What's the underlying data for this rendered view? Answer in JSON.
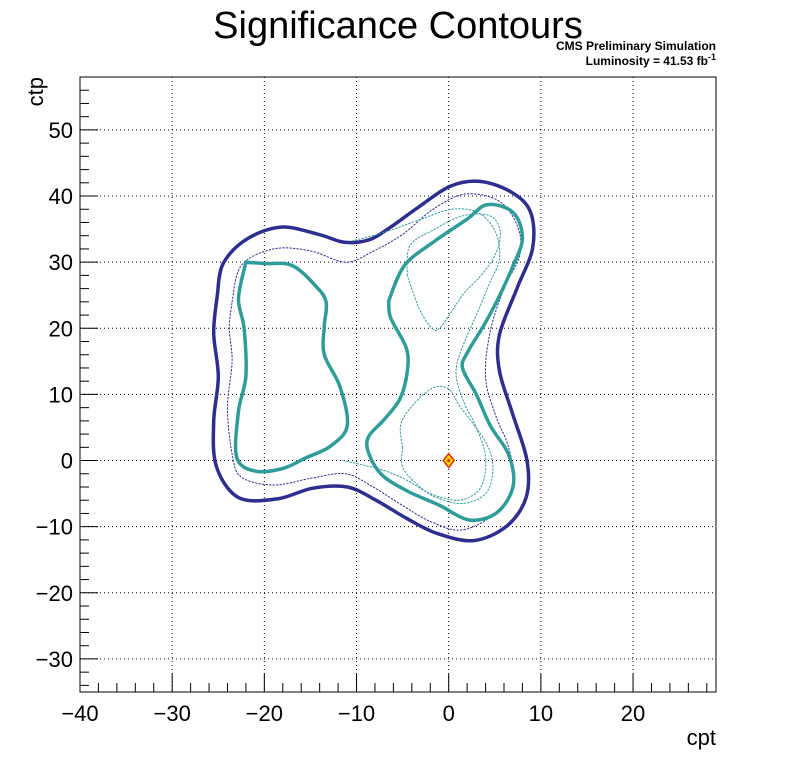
{
  "chart_data": {
    "type": "contour",
    "title": "Significance Contours",
    "annotation_line1": "CMS Preliminary Simulation",
    "annotation_line2_prefix": "Luminosity = 41.53 fb",
    "annotation_line2_sup": "-1",
    "xlabel": "cpt",
    "ylabel": "ctp",
    "xlim": [
      -40,
      29
    ],
    "ylim": [
      -35,
      58
    ],
    "x_ticks": [
      -40,
      -30,
      -20,
      -10,
      0,
      10,
      20
    ],
    "x_tick_labels": [
      "−40",
      "−30",
      "−20",
      "−10",
      "0",
      "10",
      "20"
    ],
    "y_ticks": [
      -30,
      -20,
      -10,
      0,
      10,
      20,
      30,
      40,
      50
    ],
    "y_tick_labels": [
      "−30",
      "−20",
      "−10",
      "0",
      "10",
      "20",
      "30",
      "40",
      "50"
    ],
    "grid": true,
    "colors": {
      "outer_contour": "#2e2e8e",
      "inner_contour": "#2e9c98",
      "best_fit_fill": "#ffd200",
      "best_fit_edge": "#e03000"
    },
    "best_fit_point": {
      "x": 0,
      "y": 0
    },
    "contours": [
      {
        "id": "outer-solid",
        "color": "#2e2e8e",
        "width": 3.5,
        "dash": "",
        "points": [
          [
            -25.1,
            25
          ],
          [
            -24.5,
            29.7
          ],
          [
            -22,
            33.4
          ],
          [
            -18.2,
            35.3
          ],
          [
            -14.1,
            34.2
          ],
          [
            -11.3,
            33
          ],
          [
            -8.6,
            33.4
          ],
          [
            -6.3,
            35.3
          ],
          [
            -3.3,
            38.3
          ],
          [
            0.2,
            41.5
          ],
          [
            3.5,
            42.2
          ],
          [
            6.9,
            40.5
          ],
          [
            8.9,
            37.5
          ],
          [
            9.1,
            32.1
          ],
          [
            7.4,
            26
          ],
          [
            5.5,
            19
          ],
          [
            5.5,
            13.6
          ],
          [
            6.9,
            7.2
          ],
          [
            8.5,
            0
          ],
          [
            8.4,
            -5.6
          ],
          [
            6.3,
            -9.9
          ],
          [
            2.7,
            -12.1
          ],
          [
            -1.3,
            -11
          ],
          [
            -4.5,
            -8.8
          ],
          [
            -7.9,
            -6
          ],
          [
            -11,
            -4
          ],
          [
            -14.8,
            -4.2
          ],
          [
            -18.6,
            -5.8
          ],
          [
            -22.8,
            -5.6
          ],
          [
            -25.2,
            -0.9
          ],
          [
            -25.5,
            5.9
          ],
          [
            -25,
            12.7
          ],
          [
            -25.5,
            19.3
          ],
          [
            -25.1,
            25
          ]
        ]
      },
      {
        "id": "outer-dotted",
        "color": "#2e2e8e",
        "width": 1,
        "dash": "1.5 2",
        "points": [
          [
            -23.5,
            24
          ],
          [
            -22.5,
            29.5
          ],
          [
            -19,
            32
          ],
          [
            -15,
            31.7
          ],
          [
            -11.2,
            30
          ],
          [
            -8.4,
            31.5
          ],
          [
            -5,
            34.2
          ],
          [
            -1.7,
            38
          ],
          [
            1.8,
            40.3
          ],
          [
            5.5,
            39.2
          ],
          [
            7.5,
            35.3
          ],
          [
            7.7,
            31
          ],
          [
            6,
            26
          ],
          [
            4.5,
            19.5
          ],
          [
            4,
            12.5
          ],
          [
            5.1,
            6.8
          ],
          [
            6.5,
            2
          ],
          [
            7,
            -3.5
          ],
          [
            5,
            -8
          ],
          [
            1.4,
            -10.5
          ],
          [
            -2,
            -9.2
          ],
          [
            -5,
            -6.8
          ],
          [
            -8.2,
            -4
          ],
          [
            -11.2,
            -2
          ],
          [
            -15,
            -2.7
          ],
          [
            -19,
            -3.7
          ],
          [
            -22.5,
            -2.5
          ],
          [
            -23.5,
            1
          ],
          [
            -24,
            8
          ],
          [
            -23.5,
            15
          ],
          [
            -23.8,
            20
          ],
          [
            -23.5,
            24
          ]
        ]
      },
      {
        "id": "inner-left-solid",
        "color": "#2e9c98",
        "width": 3.5,
        "dash": "",
        "points": [
          [
            -22,
            30
          ],
          [
            -20,
            29.8
          ],
          [
            -17,
            29.5
          ],
          [
            -14.5,
            26.5
          ],
          [
            -13.3,
            24
          ],
          [
            -13.5,
            20.3
          ],
          [
            -13.5,
            16
          ],
          [
            -11.8,
            11.2
          ],
          [
            -11,
            5.3
          ],
          [
            -12.8,
            2.2
          ],
          [
            -15.5,
            0.4
          ],
          [
            -18,
            -1.2
          ],
          [
            -21,
            -1.6
          ],
          [
            -23,
            0.5
          ],
          [
            -22.8,
            7.5
          ],
          [
            -22,
            12.8
          ],
          [
            -22.2,
            20
          ],
          [
            -22.8,
            24.5
          ],
          [
            -22,
            30
          ]
        ]
      },
      {
        "id": "inner-left-dotted",
        "color": "#2e9c98",
        "width": 1,
        "dash": "1.5 2",
        "points": [
          [
            -10.5,
            33.2
          ],
          [
            -7,
            34.5
          ],
          [
            -3,
            36.5
          ],
          [
            0.3,
            38
          ],
          [
            3.2,
            37.5
          ],
          [
            5.1,
            34.5
          ],
          [
            5.5,
            30.5
          ],
          [
            4.5,
            27
          ],
          [
            3,
            22
          ],
          [
            1.3,
            16.5
          ],
          [
            0.8,
            13
          ],
          [
            1.6,
            9
          ],
          [
            3,
            5
          ],
          [
            4,
            0.5
          ],
          [
            3.5,
            -4
          ],
          [
            1.2,
            -6
          ],
          [
            -2,
            -5
          ],
          [
            -4.5,
            -3
          ],
          [
            -7,
            -1.5
          ],
          [
            -9.5,
            -0.6
          ],
          [
            -11.5,
            0
          ]
        ]
      },
      {
        "id": "inner-right-solid",
        "color": "#2e9c98",
        "width": 3.5,
        "dash": "",
        "points": [
          [
            -6.5,
            24.2
          ],
          [
            -4.8,
            29.5
          ],
          [
            -1.5,
            33.2
          ],
          [
            2,
            36.5
          ],
          [
            4.2,
            38.7
          ],
          [
            7,
            37.5
          ],
          [
            8,
            33.6
          ],
          [
            6.9,
            29.2
          ],
          [
            5.3,
            24.3
          ],
          [
            3.8,
            20.4
          ],
          [
            2.1,
            16.5
          ],
          [
            1.5,
            14
          ],
          [
            3,
            10
          ],
          [
            4.5,
            5.3
          ],
          [
            6.5,
            0.9
          ],
          [
            7,
            -3.8
          ],
          [
            5.3,
            -7.8
          ],
          [
            2.3,
            -9
          ],
          [
            -1.1,
            -6.7
          ],
          [
            -4.5,
            -4.6
          ],
          [
            -7.3,
            -2.1
          ],
          [
            -8.7,
            1.2
          ],
          [
            -8.7,
            3.6
          ],
          [
            -7,
            6.2
          ],
          [
            -5.3,
            9.3
          ],
          [
            -4.5,
            13.4
          ],
          [
            -4.6,
            17
          ],
          [
            -6.3,
            21.6
          ],
          [
            -6.5,
            24.2
          ]
        ]
      },
      {
        "id": "inner-right-top-dotted",
        "color": "#2e9c98",
        "width": 1,
        "dash": "1.5 2",
        "points": [
          [
            -4.5,
            28
          ],
          [
            -4.2,
            32.5
          ],
          [
            -1.5,
            35
          ],
          [
            1.5,
            37
          ],
          [
            4.5,
            37
          ],
          [
            5.6,
            34.5
          ],
          [
            5,
            31
          ],
          [
            3.5,
            28
          ],
          [
            1.5,
            25
          ],
          [
            -0.8,
            20.3
          ],
          [
            -1.8,
            20
          ],
          [
            -3.2,
            23
          ],
          [
            -4.5,
            28
          ]
        ]
      },
      {
        "id": "inner-right-bottom-dotted",
        "color": "#2e9c98",
        "width": 1,
        "dash": "1.5 2",
        "points": [
          [
            -5,
            2
          ],
          [
            -5.2,
            5.5
          ],
          [
            -3.8,
            8.5
          ],
          [
            -1.7,
            11
          ],
          [
            0,
            10.8
          ],
          [
            1.2,
            8.2
          ],
          [
            2.8,
            5.3
          ],
          [
            4.3,
            2
          ],
          [
            4.8,
            -1.5
          ],
          [
            4,
            -5
          ],
          [
            1.5,
            -6.5
          ],
          [
            -1.5,
            -5.5
          ],
          [
            -3.5,
            -3.5
          ],
          [
            -5,
            -1
          ],
          [
            -5,
            2
          ]
        ]
      }
    ]
  }
}
